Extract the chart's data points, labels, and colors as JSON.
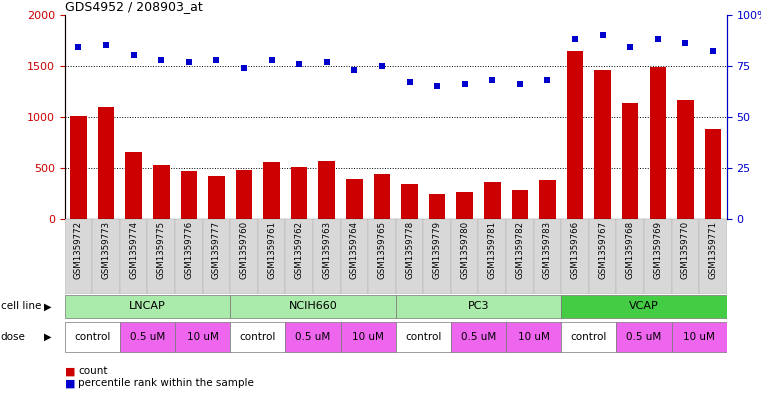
{
  "title": "GDS4952 / 208903_at",
  "samples": [
    "GSM1359772",
    "GSM1359773",
    "GSM1359774",
    "GSM1359775",
    "GSM1359776",
    "GSM1359777",
    "GSM1359760",
    "GSM1359761",
    "GSM1359762",
    "GSM1359763",
    "GSM1359764",
    "GSM1359765",
    "GSM1359778",
    "GSM1359779",
    "GSM1359780",
    "GSM1359781",
    "GSM1359782",
    "GSM1359783",
    "GSM1359766",
    "GSM1359767",
    "GSM1359768",
    "GSM1359769",
    "GSM1359770",
    "GSM1359771"
  ],
  "counts": [
    1010,
    1095,
    650,
    530,
    465,
    415,
    480,
    560,
    510,
    570,
    390,
    435,
    340,
    245,
    265,
    360,
    285,
    380,
    1640,
    1460,
    1130,
    1490,
    1165,
    880
  ],
  "percentiles": [
    84,
    85,
    80,
    78,
    77,
    78,
    74,
    78,
    76,
    77,
    73,
    75,
    67,
    65,
    66,
    68,
    66,
    68,
    88,
    90,
    84,
    88,
    86,
    82
  ],
  "cell_lines": [
    {
      "name": "LNCAP",
      "start": 0,
      "end": 6,
      "color": "#aaeaaa"
    },
    {
      "name": "NCIH660",
      "start": 6,
      "end": 12,
      "color": "#aaeaaa"
    },
    {
      "name": "PC3",
      "start": 12,
      "end": 18,
      "color": "#aaeaaa"
    },
    {
      "name": "VCAP",
      "start": 18,
      "end": 24,
      "color": "#44cc44"
    }
  ],
  "dose_groups": [
    {
      "label": "control",
      "start": 0,
      "end": 2,
      "color": "#ffffff"
    },
    {
      "label": "0.5 uM",
      "start": 2,
      "end": 4,
      "color": "#ee66ee"
    },
    {
      "label": "10 uM",
      "start": 4,
      "end": 6,
      "color": "#ee66ee"
    },
    {
      "label": "control",
      "start": 6,
      "end": 8,
      "color": "#ffffff"
    },
    {
      "label": "0.5 uM",
      "start": 8,
      "end": 10,
      "color": "#ee66ee"
    },
    {
      "label": "10 uM",
      "start": 10,
      "end": 12,
      "color": "#ee66ee"
    },
    {
      "label": "control",
      "start": 12,
      "end": 14,
      "color": "#ffffff"
    },
    {
      "label": "0.5 uM",
      "start": 14,
      "end": 16,
      "color": "#ee66ee"
    },
    {
      "label": "10 uM",
      "start": 16,
      "end": 18,
      "color": "#ee66ee"
    },
    {
      "label": "control",
      "start": 18,
      "end": 20,
      "color": "#ffffff"
    },
    {
      "label": "0.5 uM",
      "start": 20,
      "end": 22,
      "color": "#ee66ee"
    },
    {
      "label": "10 uM",
      "start": 22,
      "end": 24,
      "color": "#ee66ee"
    }
  ],
  "bar_color": "#cc0000",
  "dot_color": "#0000cc",
  "ylim_left": [
    0,
    2000
  ],
  "ylim_right": [
    0,
    100
  ],
  "yticks_left": [
    0,
    500,
    1000,
    1500,
    2000
  ],
  "yticks_right": [
    0,
    25,
    50,
    75,
    100
  ],
  "grid_values": [
    500,
    1000,
    1500
  ],
  "bar_width": 0.6,
  "xticklabel_bg": "#dddddd"
}
